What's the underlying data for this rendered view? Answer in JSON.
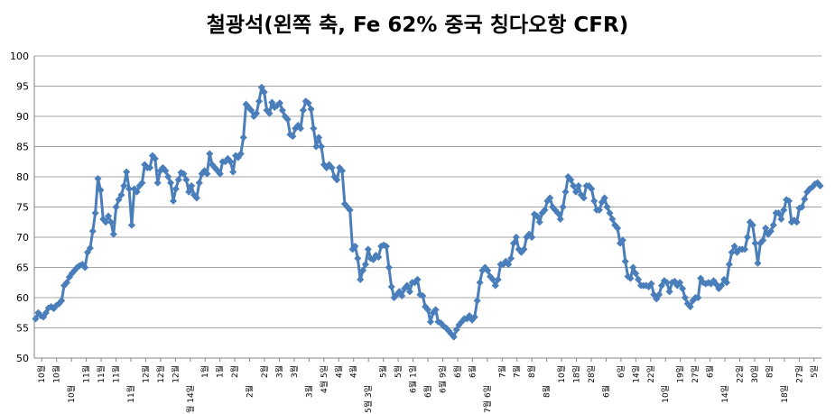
{
  "chart_data": {
    "type": "line",
    "title": "철광석(왼쪽 축, Fe 62% 중국 칭다오항 CFR)",
    "xlabel": "",
    "ylabel": "",
    "ylim": [
      50,
      100
    ],
    "yticks": [
      50,
      55,
      60,
      65,
      70,
      75,
      80,
      85,
      90,
      95,
      100
    ],
    "grid": true,
    "legend": "none",
    "colors": {
      "line": "#4a7ebb",
      "grid": "#868686",
      "axis": "#868686"
    },
    "x_tick_labels": [
      "10월",
      "10월",
      "10월",
      "11월",
      "11월",
      "11월",
      "11월",
      "12월",
      "12월",
      "12월",
      "1월 14일",
      "1월",
      "1월",
      "2월",
      "2월",
      "2월",
      "3월",
      "3월",
      "3월",
      "4월 5일",
      "4월",
      "4월",
      "5월 3일",
      "5월",
      "5월",
      "6월 1일",
      "6월",
      "6월 9일",
      "6월",
      "6월",
      "7월 6일",
      "7월",
      "7월",
      "8월",
      "8월",
      "10월",
      "18일",
      "28일",
      "6월",
      "6일",
      "14일",
      "22일",
      "10일",
      "19일",
      "27일",
      "6월",
      "14일",
      "22일",
      "30일",
      "8일",
      "18일",
      "27일",
      "5일"
    ],
    "series": [
      {
        "values": [
          56.5,
          57.5,
          57,
          56.8,
          57.5,
          58.3,
          58.5,
          58.2,
          58.7,
          59,
          59.5,
          62,
          62.5,
          63.4,
          64,
          64.5,
          65,
          65.3,
          65.5,
          65,
          67.5,
          68.2,
          71,
          74,
          79.7,
          77.8,
          73,
          72.5,
          73.5,
          72.5,
          70.5,
          75,
          76.2,
          77,
          78.5,
          80.8,
          78,
          72,
          78,
          77.5,
          78.5,
          79,
          82,
          81.5,
          81.5,
          83.5,
          83,
          79,
          81,
          81.5,
          81,
          80,
          79,
          76,
          78,
          79.5,
          80.7,
          80.5,
          79.5,
          77.5,
          78.5,
          77,
          76.5,
          79,
          80.5,
          81,
          80.5,
          83.8,
          82,
          81.5,
          81,
          80.5,
          82.5,
          82.5,
          83,
          82.5,
          80.8,
          83.5,
          83.2,
          83.8,
          86.5,
          92,
          91.5,
          91,
          90,
          90.5,
          92.5,
          94.8,
          94,
          91,
          90.5,
          92.3,
          91.5,
          91.8,
          92.2,
          91,
          90,
          89.5,
          87,
          86.7,
          88,
          88.5,
          88,
          91,
          92.5,
          92.2,
          91.2,
          88,
          85,
          86.5,
          85,
          82,
          81.5,
          82,
          81.5,
          80,
          79.5,
          81.5,
          81,
          75.5,
          75,
          74.5,
          68,
          68.5,
          66.5,
          63,
          64.5,
          65.5,
          68,
          66.5,
          66.3,
          67,
          66.7,
          68.5,
          68.7,
          68.5,
          65,
          61.8,
          60,
          60.5,
          61,
          60.3,
          61.5,
          62,
          61,
          62.5,
          62.5,
          63,
          60.5,
          60.3,
          58.5,
          58,
          56,
          57.5,
          58,
          56,
          55.8,
          55.3,
          55,
          54.5,
          54,
          53.5,
          54.7,
          55.5,
          56,
          56.5,
          56.5,
          57,
          56.3,
          56.8,
          59.5,
          62.5,
          64.5,
          65,
          64.5,
          63.5,
          63,
          62,
          63,
          65.5,
          65.5,
          66,
          65.5,
          66.5,
          69,
          70,
          68,
          67.5,
          68,
          70,
          70.5,
          70,
          73.8,
          73.5,
          72.5,
          74,
          74.5,
          76,
          76.5,
          75,
          74.5,
          74,
          73,
          75,
          77.5,
          80,
          79.5,
          78.5,
          77.5,
          78.5,
          77,
          76.5,
          78.5,
          78.5,
          78,
          76,
          74.5,
          74.5,
          75.8,
          76.5,
          75,
          74,
          73,
          72,
          71.5,
          69,
          69.5,
          66,
          63.5,
          63.2,
          65,
          64,
          63,
          62,
          62,
          62,
          61.8,
          62.3,
          60.5,
          59.8,
          60.5,
          62,
          62.8,
          62.5,
          61,
          62.5,
          62.7,
          62,
          62.5,
          61.5,
          60,
          59,
          58.5,
          59.5,
          60,
          60,
          63.2,
          62.5,
          62.3,
          62.5,
          62.3,
          62.8,
          62.2,
          61.5,
          62,
          63,
          62.5,
          65.5,
          67.5,
          68.5,
          67.5,
          68,
          68,
          68,
          70,
          72.5,
          72,
          69,
          65.7,
          69,
          69.5,
          71.5,
          70.5,
          71,
          72,
          74,
          74,
          73,
          74.5,
          76.2,
          76,
          72.5,
          72.8,
          72.5,
          74.8,
          75,
          76.3,
          77.5,
          78,
          78.3,
          78.8,
          79,
          78.5
        ]
      }
    ]
  }
}
